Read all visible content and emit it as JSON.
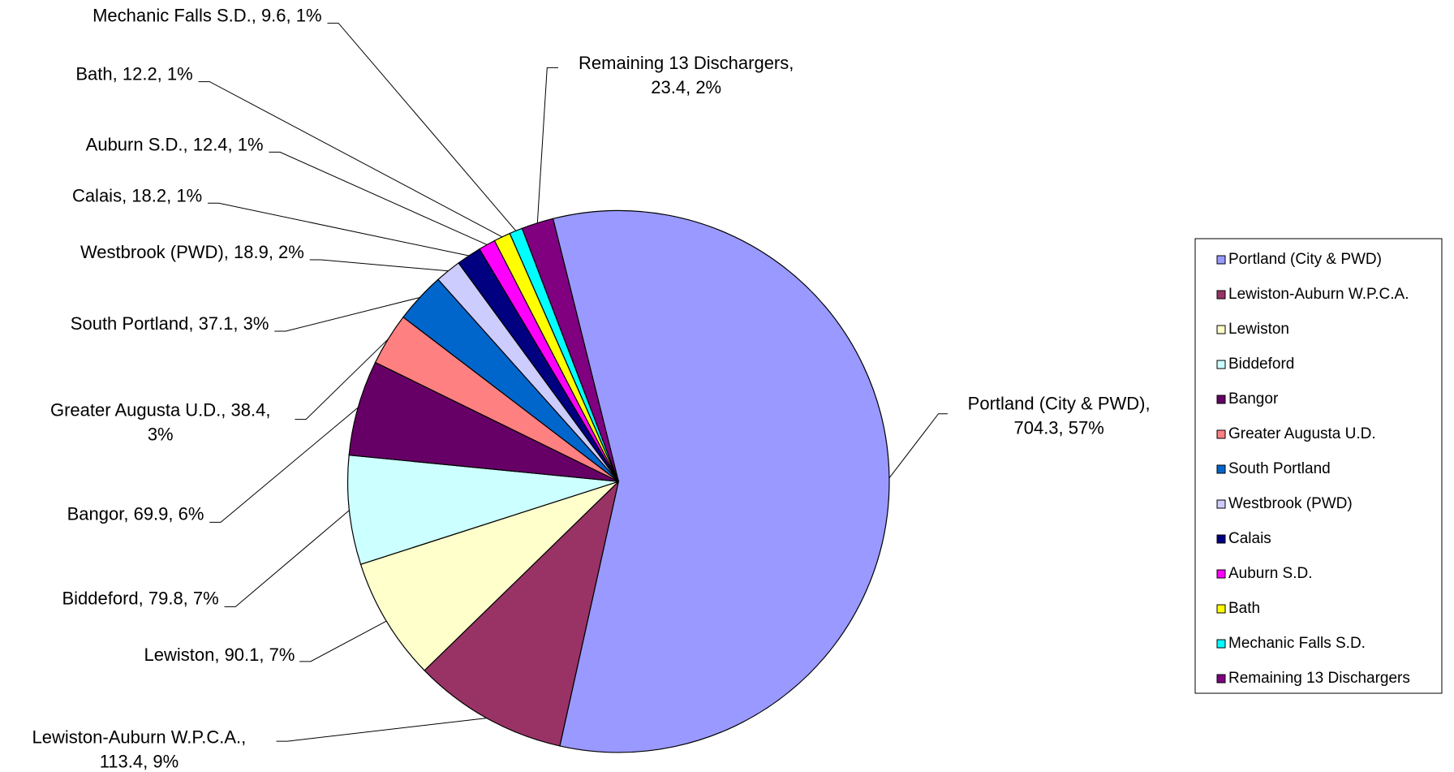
{
  "chart_data": {
    "type": "pie",
    "categories": [
      "Portland (City & PWD)",
      "Lewiston-Auburn W.P.C.A.",
      "Lewiston",
      "Biddeford",
      "Bangor",
      "Greater Augusta U.D.",
      "South Portland",
      "Westbrook (PWD)",
      "Calais",
      "Auburn S.D.",
      "Bath",
      "Mechanic Falls S.D.",
      "Remaining 13 Dischargers"
    ],
    "values": [
      704.3,
      113.4,
      90.1,
      79.8,
      69.9,
      38.4,
      37.1,
      18.9,
      18.2,
      12.4,
      12.2,
      9.6,
      23.4
    ],
    "value_labels": [
      [
        "Portland (City & PWD),",
        "704.3, 57%"
      ],
      [
        "Lewiston-Auburn W.P.C.A.,",
        "113.4, 9%"
      ],
      [
        "Lewiston, 90.1, 7%"
      ],
      [
        "Biddeford, 79.8, 7%"
      ],
      [
        "Bangor, 69.9, 6%"
      ],
      [
        "Greater Augusta U.D., 38.4,",
        "3%"
      ],
      [
        "South Portland, 37.1, 3%"
      ],
      [
        "Westbrook (PWD), 18.9, 2%"
      ],
      [
        "Calais, 18.2, 1%"
      ],
      [
        "Auburn S.D., 12.4, 1%"
      ],
      [
        "Bath, 12.2, 1%"
      ],
      [
        "Mechanic Falls S.D., 9.6, 1%"
      ],
      [
        "Remaining 13 Dischargers,",
        "23.4, 2%"
      ]
    ],
    "colors": [
      "#9999ff",
      "#993366",
      "#ffffcc",
      "#ccffff",
      "#660066",
      "#ff8080",
      "#0066cc",
      "#ccccff",
      "#000080",
      "#ff00ff",
      "#ffff00",
      "#00ffff",
      "#800080"
    ],
    "legend": "right"
  }
}
